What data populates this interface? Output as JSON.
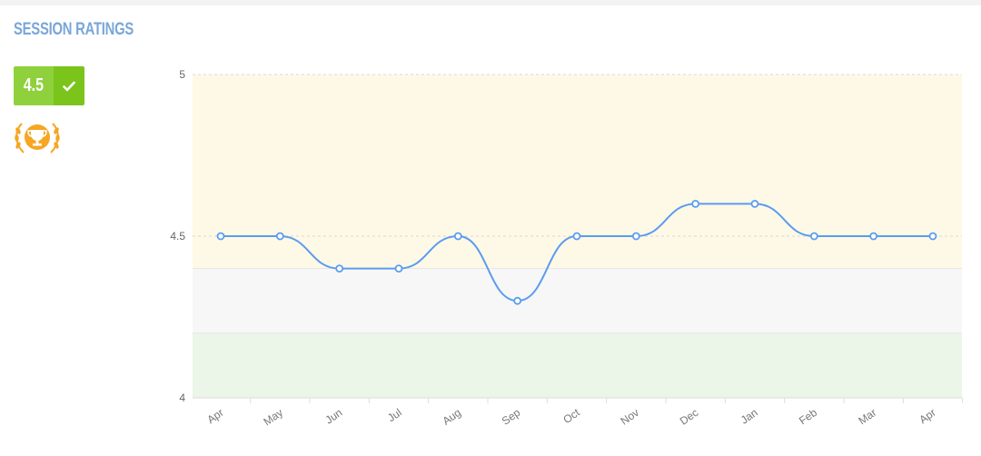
{
  "section": {
    "title": "SESSION RATINGS"
  },
  "rating": {
    "value": "4.5",
    "badge_color": "#8fd13c",
    "check_color": "#7bc41c",
    "check_icon": "check-icon"
  },
  "award": {
    "icon": "trophy-laurel-icon",
    "color": "#f6a623"
  },
  "chart_data": {
    "type": "line",
    "title": "",
    "xlabel": "",
    "ylabel": "",
    "categories": [
      "Apr",
      "May",
      "Jun",
      "Jul",
      "Aug",
      "Sep",
      "Oct",
      "Nov",
      "Dec",
      "Jan",
      "Feb",
      "Mar",
      "Apr"
    ],
    "series": [
      {
        "values": [
          4.5,
          4.5,
          4.4,
          4.4,
          4.5,
          4.3,
          4.5,
          4.5,
          4.6,
          4.6,
          4.5,
          4.5,
          4.5
        ],
        "color": "#5b9cf0"
      }
    ],
    "ylim": [
      4,
      5
    ],
    "y_ticks": [
      "4",
      "4.5",
      "5"
    ],
    "y_tick_values": [
      4,
      4.5,
      5
    ],
    "bands": [
      {
        "from": 4.4,
        "to": 5.0,
        "color": "#fef9e6"
      },
      {
        "from": 4.2,
        "to": 4.4,
        "color": "#f7f7f7"
      },
      {
        "from": 4.0,
        "to": 4.2,
        "color": "#ebf5e8"
      }
    ],
    "grid": "dashed-horizontal",
    "legend": "none"
  }
}
